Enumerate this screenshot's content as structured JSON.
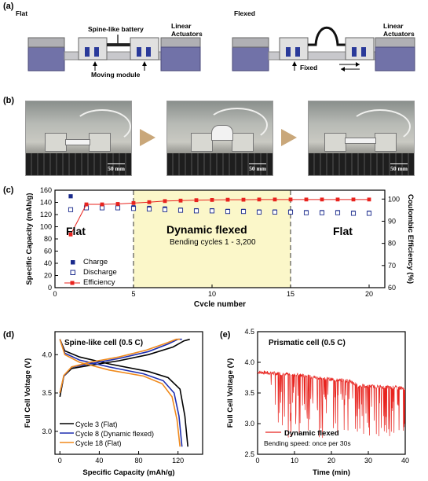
{
  "panel_a": {
    "label": "(a)",
    "left_title": "Flat",
    "right_title": "Flexed",
    "spine_battery": "Spine-like battery",
    "linear_actuators_left": "Linear Actuators",
    "linear_actuators_right": "Linear Actuators",
    "moving_module": "Moving module",
    "fixed": "Fixed"
  },
  "panel_b": {
    "label": "(b)",
    "scale_bars": [
      "50 mm",
      "50 mm",
      "50 mm"
    ]
  },
  "panel_c": {
    "label": "(c)",
    "region_labels": {
      "flat_left": "Flat",
      "dynamic": "Dynamic flexed",
      "dynamic_sub": "Bending cycles 1 - 3,200",
      "flat_right": "Flat"
    },
    "legend": [
      "Charge",
      "Discharge",
      "Efficiency"
    ]
  },
  "panel_d": {
    "label": "(d)",
    "title": "Spine-like cell (0.5 C)",
    "legend": [
      "Cycle 3 (Flat)",
      "Cycle 8 (Dynamic flexed)",
      "Cycle 18 (Flat)"
    ]
  },
  "panel_e": {
    "label": "(e)",
    "title": "Prismatic cell (0.5 C)",
    "legend": "Dynamic flexed",
    "note": "Bending speed: once per 30s"
  },
  "colors": {
    "charge": "#1a2a8c",
    "efficiency": "#e8231e",
    "cycle3": "#000000",
    "cycle8": "#1e2fb0",
    "cycle18": "#f08a1c",
    "highlight": "#fbf7c9",
    "actuator": "#6f6fa6"
  },
  "chart_data": [
    {
      "type": "scatter",
      "panel": "c",
      "xlabel": "Cycle number",
      "ylabel": "Specific Capacity (mAh/g)",
      "ylabel_right": "Coulombic Efficiency (%)",
      "xlim": [
        0,
        21
      ],
      "ylim": [
        0,
        160
      ],
      "ylim_right": [
        60,
        104
      ],
      "xticks": [
        0,
        5,
        10,
        15,
        20
      ],
      "yticks": [
        0,
        20,
        40,
        60,
        80,
        100,
        120,
        140,
        160
      ],
      "yticks_right": [
        60,
        70,
        80,
        90,
        100
      ],
      "regions": [
        {
          "from": 5,
          "to": 15,
          "label": "Dynamic flexed"
        }
      ],
      "x": [
        1,
        2,
        3,
        4,
        5,
        6,
        7,
        8,
        9,
        10,
        11,
        12,
        13,
        14,
        15,
        16,
        17,
        18,
        19,
        20
      ],
      "series": [
        {
          "name": "Charge",
          "axis": "left",
          "values": [
            150,
            134,
            133,
            133,
            132,
            131,
            130,
            128,
            127,
            127,
            126,
            126,
            125,
            125,
            125,
            124,
            124,
            124,
            123,
            123
          ]
        },
        {
          "name": "Discharge",
          "axis": "left",
          "values": [
            128,
            131,
            131,
            131,
            130,
            129,
            128,
            127,
            126,
            126,
            125,
            125,
            124,
            124,
            124,
            123,
            123,
            123,
            122,
            122
          ]
        },
        {
          "name": "Efficiency",
          "axis": "right",
          "values": [
            84,
            97.6,
            97.6,
            97.8,
            98.2,
            98.6,
            99.1,
            99.3,
            99.5,
            99.6,
            99.7,
            99.7,
            99.8,
            99.8,
            99.8,
            99.8,
            99.8,
            99.8,
            99.8,
            99.8
          ]
        }
      ]
    },
    {
      "type": "line",
      "panel": "d",
      "xlabel": "Specific Capacity (mAh/g)",
      "ylabel": "Full Cell Voltage (V)",
      "xlim": [
        -5,
        145
      ],
      "ylim": [
        2.7,
        4.3
      ],
      "xticks": [
        0,
        40,
        80,
        120
      ],
      "yticks": [
        3.0,
        3.5,
        4.0
      ],
      "series": [
        {
          "name": "Cycle 3 (Flat)",
          "charge": [
            [
              0,
              3.45
            ],
            [
              4,
              3.72
            ],
            [
              12,
              3.82
            ],
            [
              30,
              3.86
            ],
            [
              60,
              3.92
            ],
            [
              90,
              4.0
            ],
            [
              115,
              4.1
            ],
            [
              126,
              4.18
            ],
            [
              132,
              4.2
            ]
          ],
          "discharge": [
            [
              0,
              4.2
            ],
            [
              5,
              4.05
            ],
            [
              20,
              3.97
            ],
            [
              50,
              3.88
            ],
            [
              90,
              3.78
            ],
            [
              110,
              3.7
            ],
            [
              122,
              3.55
            ],
            [
              127,
              3.2
            ],
            [
              130,
              2.8
            ]
          ]
        },
        {
          "name": "Cycle 8 (Dynamic flexed)",
          "charge": [
            [
              0,
              3.5
            ],
            [
              4,
              3.72
            ],
            [
              12,
              3.84
            ],
            [
              30,
              3.88
            ],
            [
              60,
              3.95
            ],
            [
              90,
              4.04
            ],
            [
              110,
              4.14
            ],
            [
              120,
              4.2
            ],
            [
              124,
              4.2
            ]
          ],
          "discharge": [
            [
              0,
              4.2
            ],
            [
              5,
              4.02
            ],
            [
              20,
              3.93
            ],
            [
              50,
              3.84
            ],
            [
              85,
              3.75
            ],
            [
              105,
              3.66
            ],
            [
              116,
              3.5
            ],
            [
              121,
              3.2
            ],
            [
              124,
              2.8
            ]
          ]
        },
        {
          "name": "Cycle 18 (Flat)",
          "charge": [
            [
              0,
              3.5
            ],
            [
              4,
              3.73
            ],
            [
              12,
              3.84
            ],
            [
              30,
              3.9
            ],
            [
              60,
              3.97
            ],
            [
              88,
              4.06
            ],
            [
              108,
              4.15
            ],
            [
              118,
              4.2
            ],
            [
              122,
              4.2
            ]
          ],
          "discharge": [
            [
              0,
              4.2
            ],
            [
              5,
              4.0
            ],
            [
              20,
              3.9
            ],
            [
              50,
              3.8
            ],
            [
              85,
              3.72
            ],
            [
              104,
              3.62
            ],
            [
              114,
              3.45
            ],
            [
              119,
              3.15
            ],
            [
              122,
              2.8
            ]
          ]
        }
      ]
    },
    {
      "type": "line",
      "panel": "e",
      "xlabel": "Time (min)",
      "ylabel": "Full Cell Voltage (V)",
      "xlim": [
        0,
        40
      ],
      "ylim": [
        2.5,
        4.5
      ],
      "xticks": [
        0,
        10,
        20,
        30,
        40
      ],
      "yticks": [
        2.5,
        3.0,
        3.5,
        4.0,
        4.5
      ],
      "series": [
        {
          "name": "Dynamic flexed",
          "baseline": [
            [
              0,
              3.84
            ],
            [
              10,
              3.8
            ],
            [
              20,
              3.72
            ],
            [
              25,
              3.7
            ],
            [
              27,
              3.62
            ],
            [
              40,
              3.58
            ]
          ],
          "dip_min": 2.8
        }
      ]
    }
  ]
}
